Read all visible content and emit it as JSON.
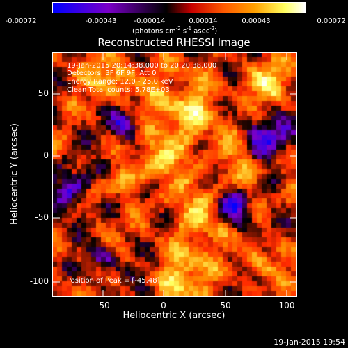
{
  "colorbar": {
    "ticks": [
      "-0.00072",
      "-0.00043",
      "-0.00014",
      "0.00014",
      "0.00043",
      "0.00072"
    ],
    "units_prefix": "(photons cm",
    "units_exp1": "-2",
    "units_mid1": " s",
    "units_exp2": "-1",
    "units_mid2": " asec",
    "units_exp3": "-2",
    "units_suffix": ")",
    "colors": [
      "#0000ff",
      "#7a00c8",
      "#000000",
      "#ff2a00",
      "#ff9000",
      "#ffff60",
      "#ffffff"
    ]
  },
  "plot": {
    "title": "Reconstructed RHESSI Image",
    "xlabel": "Heliocentric X (arcsec)",
    "ylabel": "Heliocentric Y (arcsec)",
    "xticks": [
      "-50",
      "0",
      "50",
      "100"
    ],
    "yticks": [
      "50",
      "0",
      "-50",
      "-100"
    ],
    "info": [
      "19-Jan-2015 20:14:38.000 to 20:20:38.000",
      "Detectors: 3F 6F 9F, Att 0",
      "Energy Range: 12.0 - 25.0 keV",
      "Clean  Total counts: 5.78E+03"
    ],
    "peak": "Position of Peak = [-45,48]"
  },
  "footer": {
    "timestamp": "19-Jan-2015 19:54"
  }
}
